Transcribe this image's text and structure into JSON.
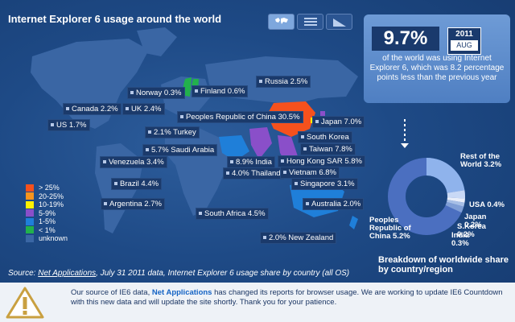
{
  "title": "Internet Explorer 6 usage around the world",
  "view_tabs": [
    {
      "icon": "world-map-icon",
      "active": true
    },
    {
      "icon": "list-icon",
      "active": false
    },
    {
      "icon": "trend-chart-icon",
      "active": false
    }
  ],
  "countries": [
    {
      "label": "Norway 0.3%",
      "color": "#3ab54a"
    },
    {
      "label": "Finland 0.6%",
      "color": "#3ab54a"
    },
    {
      "label": "Russia 2.5%"
    },
    {
      "label": "Canada 2.2%"
    },
    {
      "label": "UK 2.4%"
    },
    {
      "label": "US 1.7%"
    },
    {
      "label": "Peoples Republic of China 30.5%",
      "color": "#f5511d"
    },
    {
      "label": "Japan 7.0%"
    },
    {
      "label": "2.1% Turkey"
    },
    {
      "label": "South Korea"
    },
    {
      "label": "5.7% Saudi Arabia"
    },
    {
      "label": "Taiwan 7.8%"
    },
    {
      "label": "Venezuela 3.4%"
    },
    {
      "label": "8.9% India"
    },
    {
      "label": "Hong Kong SAR 5.8%"
    },
    {
      "label": "4.0% Thailand"
    },
    {
      "label": "Vietnam 6.8%"
    },
    {
      "label": "Singapore 3.1%"
    },
    {
      "label": "Brazil 4.4%"
    },
    {
      "label": "Argentina 2.7%"
    },
    {
      "label": "South Africa 4.5%"
    },
    {
      "label": "Australia 2.0%"
    },
    {
      "label": "2.0% New Zealand"
    }
  ],
  "legend": [
    {
      "label": "> 25%",
      "color": "#f5511d"
    },
    {
      "label": "20-25%",
      "color": "#f7941d"
    },
    {
      "label": "10-19%",
      "color": "#fff200"
    },
    {
      "label": "5-9%",
      "color": "#8a4fc9"
    },
    {
      "label": "1-5%",
      "color": "#1f7fd9"
    },
    {
      "label": "< 1%",
      "color": "#22b14c"
    },
    {
      "label": "unknown",
      "color": "#3a66a4"
    }
  ],
  "stat": {
    "value": "9.7%",
    "year": "2011",
    "month": "AUG",
    "description": "of the world was using Internet Explorer 6, which was 8.2 percentage points less than the previous year"
  },
  "breakdown": {
    "title": "Breakdown of worldwide share by country/region",
    "labels": {
      "rest": "Rest of the World 3.2%",
      "usa": "USA 0.4%",
      "japan": "Japan 0.2%",
      "korea": "S.Korea 0.2%",
      "india": "India 0.3%",
      "china": "Peoples Republic of China 5.2%"
    }
  },
  "source": {
    "prefix": "Source: ",
    "link": "Net Applications",
    "suffix": ", July 31 2011 data, Internet Explorer 6 usage share by country (all OS)"
  },
  "notice": {
    "prefix": "Our source of IE6 data, ",
    "link": "Net Applications",
    "suffix": " has changed its reports for browser usage. We are working to update IE6 Countdown with this new data and will update the site shortly. Thank you for your patience."
  },
  "colors": {
    "ocean": "#1e4a86",
    "land_default": "#3a66a4",
    "panel": "#5f8fcf",
    "stat_box": "#1a3a6d"
  }
}
